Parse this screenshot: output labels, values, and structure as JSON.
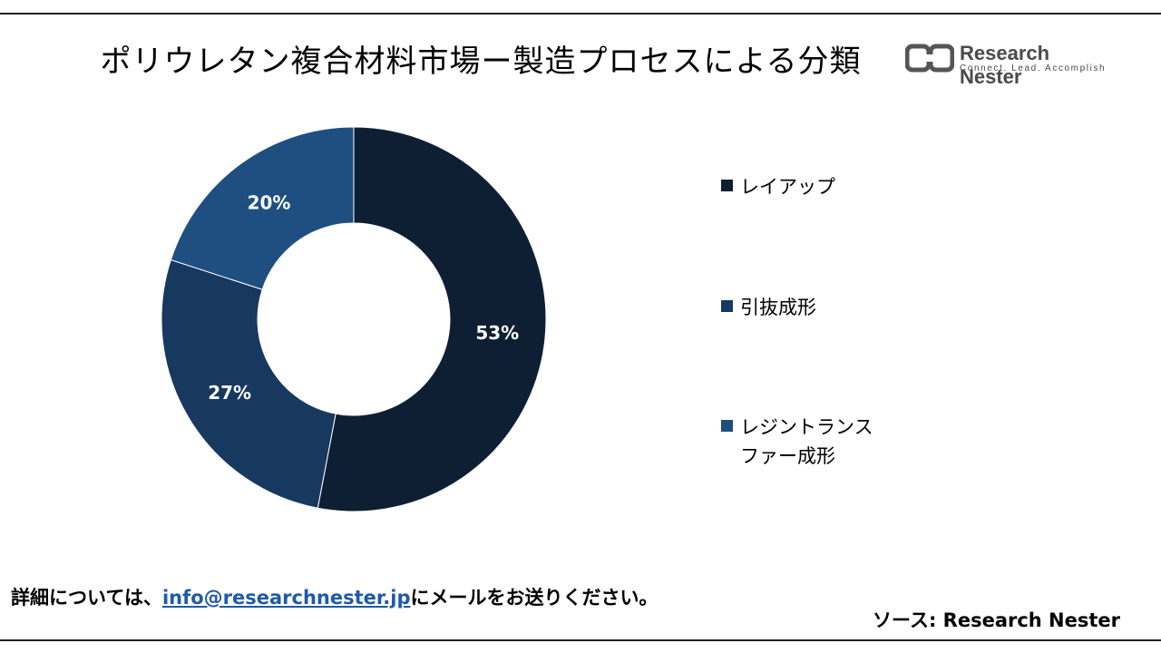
{
  "title": "ポリウレタン複合材料市場ー製造プロセスによる分類",
  "logo": {
    "name": "Research Nester",
    "tagline": "Connect. Lead. Accomplish"
  },
  "chart_data": {
    "type": "pie",
    "categories": [
      "レイアップ",
      "引抜成形",
      "レジントランスファー成形"
    ],
    "values": [
      53,
      27,
      20
    ],
    "labels": [
      "53%",
      "27%",
      "20%"
    ],
    "colors": [
      "#0e1f33",
      "#17385f",
      "#1f4f80"
    ],
    "legend_position": "right",
    "title": "ポリウレタン複合材料市場ー製造プロセスによる分類"
  },
  "legend": [
    {
      "label": "レイアップ",
      "color": "#0e1f33"
    },
    {
      "label": "引抜成形",
      "color": "#17385f"
    },
    {
      "label": "レジントランスファー成形",
      "color": "#1f4f80"
    }
  ],
  "footer": {
    "contact_prefix": "詳細については、",
    "email": "info@researchnester.jp",
    "contact_suffix": "にメールをお送りください。",
    "source": "ソース: Research Nester"
  }
}
